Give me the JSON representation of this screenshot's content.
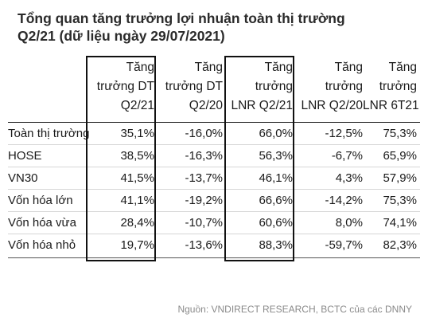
{
  "title_line1": "Tổng quan tăng trưởng lợi nhuận toàn thị trường",
  "title_line2": "Q2/21 (dữ liệu ngày 29/07/2021)",
  "columns": [
    {
      "lines": [
        "Tăng",
        "trưởng DT",
        "Q2/21"
      ]
    },
    {
      "lines": [
        "Tăng",
        "trưởng DT",
        "Q2/20"
      ]
    },
    {
      "lines": [
        "Tăng",
        "trưởng",
        "LNR Q2/21"
      ]
    },
    {
      "lines": [
        "Tăng",
        "trưởng",
        "LNR Q2/20"
      ]
    },
    {
      "lines": [
        "Tăng",
        "trưởng",
        "LNR 6T21"
      ]
    }
  ],
  "rows": [
    {
      "label": "Toàn thị trường",
      "values": [
        "35,1%",
        "-16,0%",
        "66,0%",
        "-12,5%",
        "75,3%"
      ]
    },
    {
      "label": "HOSE",
      "values": [
        "38,5%",
        "-16,3%",
        "56,3%",
        "-6,7%",
        "65,9%"
      ]
    },
    {
      "label": "VN30",
      "values": [
        "41,5%",
        "-13,7%",
        "46,1%",
        "4,3%",
        "57,9%"
      ]
    },
    {
      "label": "Vốn hóa lớn",
      "values": [
        "41,1%",
        "-19,2%",
        "66,6%",
        "-14,2%",
        "75,3%"
      ]
    },
    {
      "label": "Vốn hóa vừa",
      "values": [
        "28,4%",
        "-10,7%",
        "60,6%",
        "8,0%",
        "74,1%"
      ]
    },
    {
      "label": "Vốn hóa nhỏ",
      "values": [
        "19,7%",
        "-13,6%",
        "88,3%",
        "-59,7%",
        "82,3%"
      ]
    }
  ],
  "source": "Nguồn: VNDIRECT RESEARCH, BCTC của các DNNY"
}
